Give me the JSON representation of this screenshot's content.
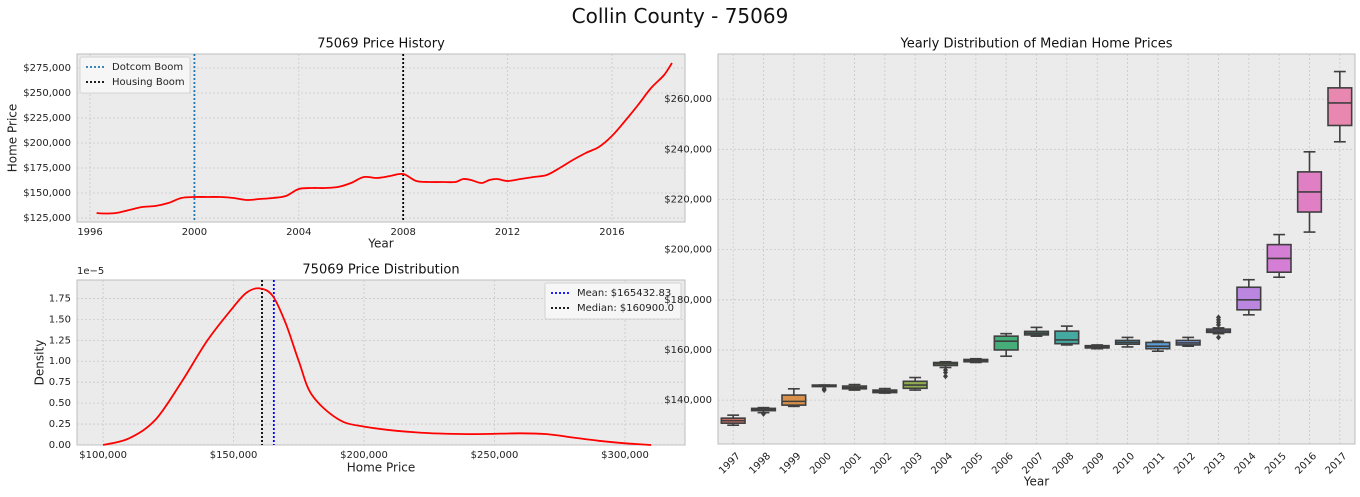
{
  "figure": {
    "title": "Collin County - 75069"
  },
  "chart_data": [
    {
      "type": "line",
      "title": "75069 Price History",
      "xlabel": "Year",
      "ylabel": "Home Price",
      "xlim": [
        1995.5,
        2018.8
      ],
      "ylim": [
        121000,
        289000
      ],
      "xticks": [
        1996,
        2000,
        2004,
        2008,
        2012,
        2016
      ],
      "yticks": [
        125000,
        150000,
        175000,
        200000,
        225000,
        250000,
        275000
      ],
      "ytick_labels": [
        "$125,000",
        "$150,000",
        "$175,000",
        "$200,000",
        "$225,000",
        "$250,000",
        "$275,000"
      ],
      "grid": true,
      "legend_position": "top-left",
      "series": [
        {
          "name": "",
          "color": "#ff0000",
          "x": [
            1996.25,
            1996.5,
            1997.0,
            1997.5,
            1998.0,
            1998.5,
            1999.0,
            1999.5,
            2000.0,
            2000.5,
            2001.0,
            2001.5,
            2002.0,
            2002.5,
            2003.0,
            2003.5,
            2004.0,
            2004.5,
            2005.0,
            2005.5,
            2006.0,
            2006.5,
            2007.0,
            2007.5,
            2008.0,
            2008.5,
            2009.0,
            2009.5,
            2010.0,
            2010.3,
            2010.6,
            2011.0,
            2011.3,
            2011.6,
            2012.0,
            2012.5,
            2013.0,
            2013.5,
            2014.0,
            2014.5,
            2015.0,
            2015.5,
            2016.0,
            2016.5,
            2017.0,
            2017.5,
            2018.0,
            2018.3
          ],
          "y": [
            130000,
            129500,
            130000,
            133000,
            136000,
            137000,
            140000,
            145000,
            146000,
            146000,
            146000,
            145000,
            143000,
            144000,
            145000,
            147000,
            154000,
            155000,
            155000,
            156000,
            160000,
            166000,
            165000,
            167000,
            169000,
            162000,
            161000,
            161000,
            161000,
            164000,
            163000,
            160000,
            163000,
            164000,
            162000,
            164000,
            166000,
            168000,
            175000,
            183000,
            190000,
            196000,
            207000,
            222000,
            238000,
            255000,
            268000,
            280000
          ]
        }
      ],
      "vlines": [
        {
          "label": "Dotcom Boom",
          "x": 2000.0,
          "color": "#1f77b4",
          "style": "dotted"
        },
        {
          "label": "Housing Boom",
          "x": 2008.0,
          "color": "#000000",
          "style": "dotted"
        }
      ]
    },
    {
      "type": "line",
      "title": "75069 Price Distribution",
      "xlabel": "Home Price",
      "ylabel": "Density",
      "y_offset_label": "1e−5",
      "xlim": [
        90000,
        323000
      ],
      "ylim": [
        0,
        1.97e-05
      ],
      "xticks": [
        100000,
        150000,
        200000,
        250000,
        300000
      ],
      "xtick_labels": [
        "$100,000",
        "$150,000",
        "$200,000",
        "$250,000",
        "$300,000"
      ],
      "yticks": [
        0,
        2.5e-06,
        5e-06,
        7.5e-06,
        1e-05,
        1.25e-05,
        1.5e-05,
        1.75e-05
      ],
      "ytick_labels": [
        "0.00",
        "0.25",
        "0.50",
        "0.75",
        "1.00",
        "1.25",
        "1.50",
        "1.75"
      ],
      "grid": true,
      "legend_position": "top-right",
      "series": [
        {
          "name": "",
          "color": "#ff0000",
          "x": [
            100000,
            110000,
            120000,
            130000,
            140000,
            150000,
            155000,
            160000,
            165000,
            170000,
            175000,
            180000,
            190000,
            200000,
            220000,
            240000,
            260000,
            270000,
            280000,
            290000,
            300000,
            310000
          ],
          "y": [
            0,
            8e-07,
            3e-06,
            7.5e-06,
            1.25e-05,
            1.65e-05,
            1.82e-05,
            1.87e-05,
            1.78e-05,
            1.45e-05,
            1e-05,
            6e-06,
            3.1e-06,
            2.2e-06,
            1.5e-06,
            1.3e-06,
            1.4e-06,
            1.3e-06,
            9e-07,
            5e-07,
            2e-07,
            0
          ]
        }
      ],
      "vlines": [
        {
          "label": "Mean: $165432.83",
          "x": 165432.83,
          "color": "#0000ff",
          "style": "dotted"
        },
        {
          "label": "Median: $160900.0",
          "x": 160900.0,
          "color": "#000000",
          "style": "dotted"
        }
      ]
    },
    {
      "type": "box",
      "title": "Yearly Distribution of Median Home Prices",
      "xlabel": "Year",
      "ylabel": "",
      "ylim": [
        122500,
        278000
      ],
      "yticks": [
        140000,
        160000,
        180000,
        200000,
        220000,
        240000,
        260000
      ],
      "ytick_labels": [
        "$140,000",
        "$160,000",
        "$180,000",
        "$200,000",
        "$220,000",
        "$240,000",
        "$260,000"
      ],
      "grid": true,
      "categories": [
        "1997",
        "1998",
        "1999",
        "2000",
        "2001",
        "2002",
        "2003",
        "2004",
        "2005",
        "2006",
        "2007",
        "2008",
        "2009",
        "2010",
        "2011",
        "2012",
        "2013",
        "2014",
        "2015",
        "2016",
        "2017"
      ],
      "boxes": [
        {
          "min": 130000,
          "q1": 130800,
          "median": 131800,
          "q3": 132800,
          "max": 134000,
          "outliers": [],
          "color": "#e1766a"
        },
        {
          "min": 135000,
          "q1": 135800,
          "median": 136200,
          "q3": 136700,
          "max": 137000,
          "outliers": [
            134500
          ],
          "color": "#dd8452"
        },
        {
          "min": 137500,
          "q1": 138000,
          "median": 139500,
          "q3": 142000,
          "max": 144500,
          "outliers": [],
          "color": "#d9904a"
        },
        {
          "min": 145500,
          "q1": 145600,
          "median": 145800,
          "q3": 146000,
          "max": 146000,
          "outliers": [
            144500,
            144000
          ],
          "color": "#c49a3e"
        },
        {
          "min": 144000,
          "q1": 144500,
          "median": 145000,
          "q3": 145600,
          "max": 146200,
          "outliers": [],
          "color": "#b0a036"
        },
        {
          "min": 142800,
          "q1": 143000,
          "median": 143500,
          "q3": 144000,
          "max": 144600,
          "outliers": [],
          "color": "#a0a63e"
        },
        {
          "min": 144000,
          "q1": 144700,
          "median": 146000,
          "q3": 147500,
          "max": 149000,
          "outliers": [],
          "color": "#8fac4e"
        },
        {
          "min": 153000,
          "q1": 153800,
          "median": 154500,
          "q3": 155000,
          "max": 155300,
          "outliers": [
            152000,
            151000,
            149500
          ],
          "color": "#6cb24e"
        },
        {
          "min": 155000,
          "q1": 155300,
          "median": 155700,
          "q3": 156200,
          "max": 156500,
          "outliers": [],
          "color": "#4eb25c"
        },
        {
          "min": 157500,
          "q1": 160000,
          "median": 163500,
          "q3": 165500,
          "max": 166500,
          "outliers": [],
          "color": "#44ad78"
        },
        {
          "min": 165500,
          "q1": 166000,
          "median": 166700,
          "q3": 167400,
          "max": 169000,
          "outliers": [],
          "color": "#42ab8f"
        },
        {
          "min": 162000,
          "q1": 162500,
          "median": 164000,
          "q3": 167500,
          "max": 169500,
          "outliers": [],
          "color": "#43a9a1"
        },
        {
          "min": 160500,
          "q1": 160800,
          "median": 161200,
          "q3": 161700,
          "max": 162000,
          "outliers": [],
          "color": "#48a6b5"
        },
        {
          "min": 161200,
          "q1": 162300,
          "median": 163000,
          "q3": 163800,
          "max": 165000,
          "outliers": [],
          "color": "#4da2c6"
        },
        {
          "min": 159500,
          "q1": 160500,
          "median": 161500,
          "q3": 163000,
          "max": 163500,
          "outliers": [],
          "color": "#5c9ed6"
        },
        {
          "min": 161500,
          "q1": 162000,
          "median": 162800,
          "q3": 163800,
          "max": 165000,
          "outliers": [],
          "color": "#7a98e0"
        },
        {
          "min": 166500,
          "q1": 167000,
          "median": 167600,
          "q3": 168300,
          "max": 168800,
          "outliers": [
            165000,
            170000,
            171000,
            172000,
            173000
          ],
          "color": "#9b90e2"
        },
        {
          "min": 174000,
          "q1": 176000,
          "median": 180000,
          "q3": 185000,
          "max": 188000,
          "outliers": [],
          "color": "#bb86e0"
        },
        {
          "min": 189000,
          "q1": 191000,
          "median": 196500,
          "q3": 202000,
          "max": 206000,
          "outliers": [],
          "color": "#d57ed6"
        },
        {
          "min": 207000,
          "q1": 215000,
          "median": 223000,
          "q3": 231000,
          "max": 239000,
          "outliers": [],
          "color": "#e07fc4"
        },
        {
          "min": 243000,
          "q1": 249500,
          "median": 258500,
          "q3": 264500,
          "max": 271000,
          "outliers": [],
          "color": "#e888b0"
        }
      ]
    }
  ]
}
